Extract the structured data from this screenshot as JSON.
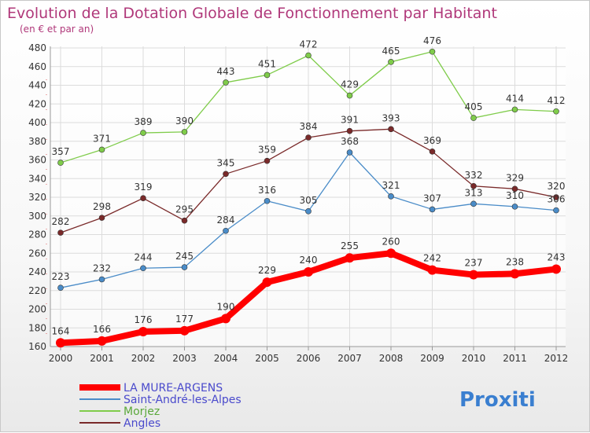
{
  "chart_data": {
    "type": "line",
    "title": "Evolution de la Dotation Globale de Fonctionnement par Habitant",
    "subtitle": "(en € et par an)",
    "x": [
      "2000",
      "2001",
      "2002",
      "2003",
      "2004",
      "2005",
      "2006",
      "2007",
      "2008",
      "2009",
      "2010",
      "2011",
      "2012"
    ],
    "ylim": [
      160,
      480
    ],
    "yticks": [
      160,
      180,
      200,
      220,
      240,
      260,
      280,
      300,
      320,
      340,
      360,
      380,
      400,
      420,
      440,
      460,
      480
    ],
    "grid": true,
    "legend_position": "bottom-left",
    "series": [
      {
        "name": "Morjez",
        "color": "#7fcc4a",
        "values": [
          357,
          371,
          389,
          390,
          443,
          451,
          472,
          429,
          465,
          476,
          405,
          414,
          412
        ]
      },
      {
        "name": "Angles",
        "color": "#7a2a2a",
        "values": [
          282,
          298,
          319,
          295,
          345,
          359,
          384,
          391,
          393,
          369,
          332,
          329,
          320
        ]
      },
      {
        "name": "Saint-André-les-Alpes",
        "color": "#4a8cc8",
        "values": [
          223,
          232,
          244,
          245,
          284,
          316,
          305,
          368,
          321,
          307,
          313,
          310,
          306
        ]
      },
      {
        "name": "LA MURE-ARGENS",
        "color": "#ff0000",
        "values": [
          164,
          166,
          176,
          177,
          190,
          229,
          240,
          255,
          260,
          242,
          237,
          238,
          243
        ]
      }
    ],
    "legend_order": [
      "LA MURE-ARGENS",
      "Saint-André-les-Alpes",
      "Morjez",
      "Angles"
    ]
  },
  "logo": {
    "text": "Proxiti"
  }
}
